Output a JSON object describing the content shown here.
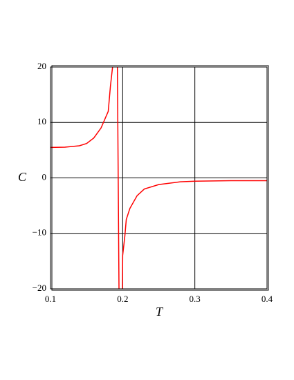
{
  "chart_data": {
    "type": "line",
    "xlabel": "T",
    "ylabel": "C",
    "x": [
      0.1,
      0.12,
      0.14,
      0.15,
      0.16,
      0.17,
      0.175,
      0.18,
      0.183,
      0.186,
      null,
      0.1927,
      0.1949,
      null,
      0.1997,
      0.2,
      0.203,
      0.205,
      0.21,
      0.22,
      0.23,
      0.25,
      0.28,
      0.3,
      0.35,
      0.4
    ],
    "series": [
      {
        "color": "#ff0000",
        "values": [
          5.5,
          5.55,
          5.8,
          6.2,
          7.2,
          9.0,
          10.5,
          12,
          16.5,
          20,
          null,
          20,
          -20,
          null,
          -20,
          -14,
          -10.5,
          -7.5,
          -5.5,
          -3.2,
          -2.0,
          -1.2,
          -0.7,
          -0.6,
          -0.5,
          -0.5
        ]
      }
    ],
    "xlim": [
      0.1,
      0.4
    ],
    "ylim": [
      -20,
      20
    ],
    "xticks": [
      0.1,
      0.2,
      0.3,
      0.4
    ],
    "yticks": [
      {
        "value": -20,
        "label": "−20"
      },
      {
        "value": -10,
        "label": "−10"
      },
      0,
      10,
      20
    ],
    "grid": true
  }
}
